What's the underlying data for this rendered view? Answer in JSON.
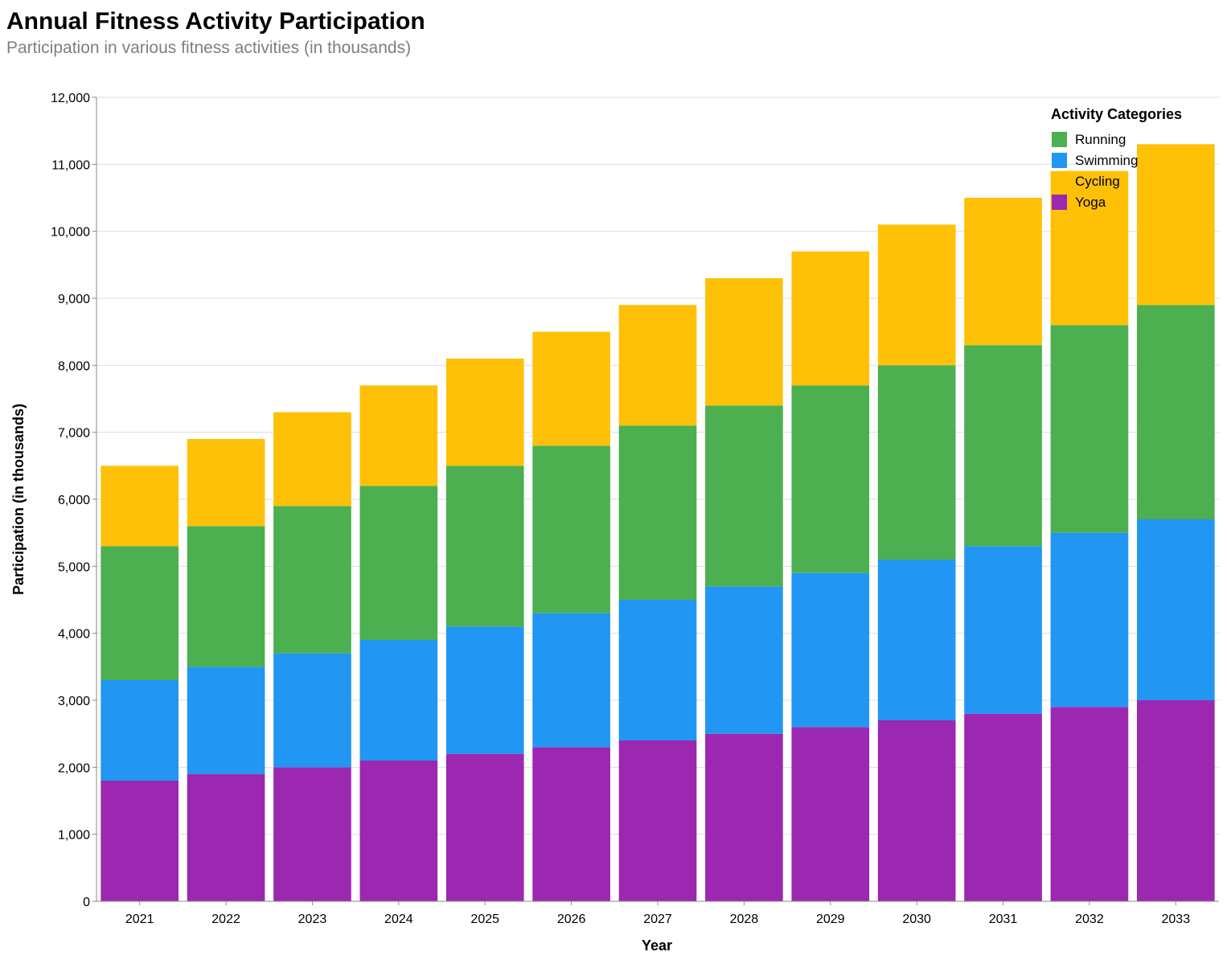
{
  "chart_data": {
    "type": "bar",
    "stacked": true,
    "title": "Annual Fitness Activity Participation",
    "subtitle": "Participation in various fitness activities (in thousands)",
    "xlabel": "Year",
    "ylabel": "Participation (in thousands)",
    "ylim": [
      0,
      12000
    ],
    "yticks": [
      0,
      1000,
      2000,
      3000,
      4000,
      5000,
      6000,
      7000,
      8000,
      9000,
      10000,
      11000,
      12000
    ],
    "grid": true,
    "legend": {
      "title": "Activity Categories",
      "placement": "top-right",
      "items": [
        "Running",
        "Swimming",
        "Cycling",
        "Yoga"
      ]
    },
    "categories": [
      "2021",
      "2022",
      "2023",
      "2024",
      "2025",
      "2026",
      "2027",
      "2028",
      "2029",
      "2030",
      "2031",
      "2032",
      "2033"
    ],
    "series": [
      {
        "name": "Yoga",
        "color": "#9c27b0",
        "values": [
          1800,
          1900,
          2000,
          2100,
          2200,
          2300,
          2400,
          2500,
          2600,
          2700,
          2800,
          2900,
          3000
        ]
      },
      {
        "name": "Swimming",
        "color": "#2196f3",
        "values": [
          1500,
          1600,
          1700,
          1800,
          1900,
          2000,
          2100,
          2200,
          2300,
          2400,
          2500,
          2600,
          2700
        ]
      },
      {
        "name": "Running",
        "color": "#4caf50",
        "values": [
          2000,
          2100,
          2200,
          2300,
          2400,
          2500,
          2600,
          2700,
          2800,
          2900,
          3000,
          3100,
          3200
        ]
      },
      {
        "name": "Cycling",
        "color": "#ffc107",
        "values": [
          1200,
          1300,
          1400,
          1500,
          1600,
          1700,
          1800,
          1900,
          2000,
          2100,
          2200,
          2300,
          2400
        ]
      }
    ]
  }
}
